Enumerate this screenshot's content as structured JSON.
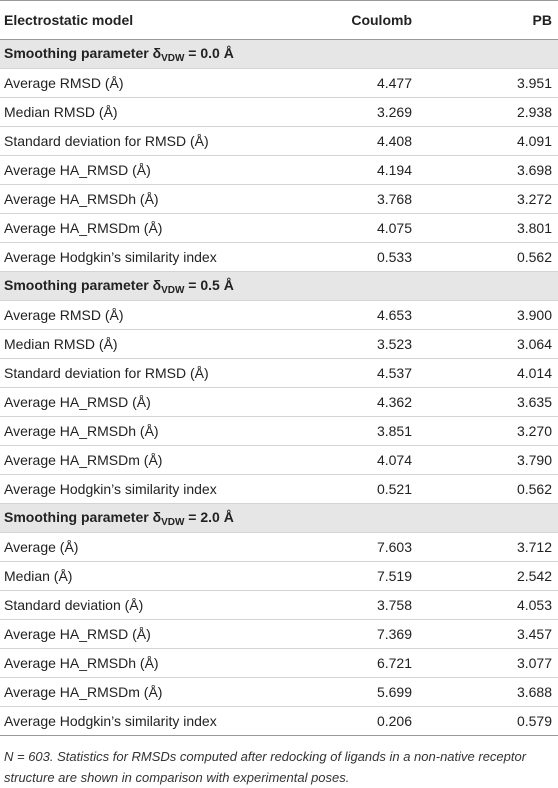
{
  "header": {
    "columns": [
      "Electrostatic model",
      "Coulomb",
      "PB"
    ]
  },
  "sections": [
    {
      "heading": {
        "prefix": "Smoothing parameter δ",
        "sub": "VDW",
        "suffix": " = 0.0 Å"
      },
      "rows": [
        [
          "Average RMSD (Å)",
          "4.477",
          "3.951"
        ],
        [
          "Median RMSD (Å)",
          "3.269",
          "2.938"
        ],
        [
          "Standard deviation for RMSD (Å)",
          "4.408",
          "4.091"
        ],
        [
          "Average HA_RMSD (Å)",
          "4.194",
          "3.698"
        ],
        [
          "Average HA_RMSDh (Å)",
          "3.768",
          "3.272"
        ],
        [
          "Average HA_RMSDm (Å)",
          "4.075",
          "3.801"
        ],
        [
          "Average Hodgkin’s similarity index",
          "0.533",
          "0.562"
        ]
      ]
    },
    {
      "heading": {
        "prefix": "Smoothing parameter δ",
        "sub": "VDW",
        "suffix": " = 0.5 Å"
      },
      "rows": [
        [
          "Average RMSD (Å)",
          "4.653",
          "3.900"
        ],
        [
          "Median RMSD (Å)",
          "3.523",
          "3.064"
        ],
        [
          "Standard deviation for RMSD (Å)",
          "4.537",
          "4.014"
        ],
        [
          "Average HA_RMSD (Å)",
          "4.362",
          "3.635"
        ],
        [
          "Average HA_RMSDh (Å)",
          "3.851",
          "3.270"
        ],
        [
          "Average HA_RMSDm (Å)",
          "4.074",
          "3.790"
        ],
        [
          "Average Hodgkin’s similarity index",
          "0.521",
          "0.562"
        ]
      ]
    },
    {
      "heading": {
        "prefix": "Smoothing parameter δ",
        "sub": "VDW",
        "suffix": " = 2.0 Å"
      },
      "rows": [
        [
          "Average (Å)",
          "7.603",
          "3.712"
        ],
        [
          "Median (Å)",
          "7.519",
          "2.542"
        ],
        [
          "Standard deviation (Å)",
          "3.758",
          "4.053"
        ],
        [
          "Average HA_RMSD (Å)",
          "7.369",
          "3.457"
        ],
        [
          "Average HA_RMSDh (Å)",
          "6.721",
          "3.077"
        ],
        [
          "Average HA_RMSDm (Å)",
          "5.699",
          "3.688"
        ],
        [
          "Average Hodgkin’s similarity index",
          "0.206",
          "0.579"
        ]
      ]
    }
  ],
  "footnote": "N = 603. Statistics for RMSDs computed after redocking of ligands in a non-native receptor structure are shown in comparison with experimental poses."
}
